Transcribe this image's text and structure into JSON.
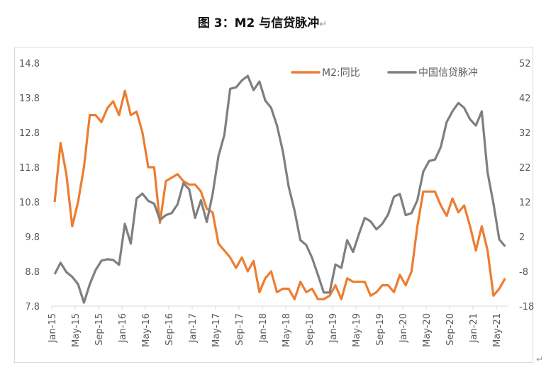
{
  "chart_data": {
    "type": "line",
    "title": "图 3：M2 与信贷脉冲",
    "xlabel": "",
    "x_tick_labels": [
      "Jan-15",
      "May-15",
      "Sep-15",
      "Jan-16",
      "May-16",
      "Sep-16",
      "Jan-17",
      "May-17",
      "Sep-17",
      "Jan-18",
      "May-18",
      "Sep-18",
      "Jan-19",
      "May-19",
      "Sep-19",
      "Jan-20",
      "May-20",
      "Sep-20",
      "Jan-21",
      "May-21"
    ],
    "x_start": "Jan-15",
    "x_end": "Jun-21",
    "y_left": {
      "label": "",
      "ylim": [
        7.8,
        14.8
      ],
      "ticks": [
        "14.8",
        "13.8",
        "12.8",
        "11.8",
        "10.8",
        "9.8",
        "8.8",
        "7.8"
      ]
    },
    "y_right": {
      "label": "",
      "ylim": [
        -18,
        52
      ],
      "ticks": [
        "52",
        "42",
        "32",
        "22",
        "12",
        "2",
        "-8",
        "-18"
      ]
    },
    "grid": false,
    "legend_position": "top-right",
    "series": [
      {
        "name": "M2:同比",
        "axis": "left",
        "color": "#ED7D31",
        "values": [
          10.8,
          12.5,
          11.6,
          10.1,
          10.8,
          11.8,
          13.3,
          13.3,
          13.1,
          13.5,
          13.7,
          13.3,
          14.0,
          13.3,
          13.4,
          12.8,
          11.8,
          11.8,
          10.2,
          11.4,
          11.5,
          11.6,
          11.4,
          11.3,
          11.3,
          11.1,
          10.6,
          10.5,
          9.6,
          9.4,
          9.2,
          8.9,
          9.2,
          8.8,
          9.1,
          8.2,
          8.6,
          8.8,
          8.2,
          8.3,
          8.3,
          8.0,
          8.5,
          8.2,
          8.3,
          8.0,
          8.0,
          8.1,
          8.4,
          8.0,
          8.6,
          8.5,
          8.5,
          8.5,
          8.1,
          8.2,
          8.4,
          8.4,
          8.2,
          8.7,
          8.4,
          8.8,
          10.1,
          11.1,
          11.1,
          11.1,
          10.7,
          10.4,
          10.9,
          10.5,
          10.7,
          10.1,
          9.4,
          10.1,
          9.4,
          8.1,
          8.3,
          8.6
        ]
      },
      {
        "name": "中国信贷脉冲",
        "axis": "right",
        "color": "#7F7F7F",
        "values": [
          -8.8,
          -5.5,
          -8.2,
          -9.6,
          -11.7,
          -17,
          -11.7,
          -7.6,
          -4.9,
          -4.5,
          -4.7,
          -6.1,
          5.7,
          0,
          13,
          14.4,
          12.3,
          11.5,
          6.8,
          8.2,
          8.8,
          11.3,
          17.4,
          15.6,
          7.4,
          12.5,
          6.2,
          14.3,
          25.2,
          31.3,
          44.6,
          45,
          47,
          48.3,
          44.2,
          46.7,
          41.2,
          39.1,
          34,
          26.6,
          16.4,
          9.5,
          1,
          -0.4,
          -4.1,
          -9,
          -14.1,
          -14.1,
          -6,
          -7,
          1,
          -2.4,
          2.7,
          7.4,
          6.4,
          4.1,
          5.7,
          8.4,
          13.5,
          14.3,
          8.2,
          8.8,
          12.5,
          20.7,
          23.8,
          24.2,
          27.8,
          35,
          38.1,
          40.5,
          39.1,
          35.8,
          34,
          38.1,
          20.5,
          11.5,
          1.2,
          -0.8
        ]
      }
    ]
  }
}
